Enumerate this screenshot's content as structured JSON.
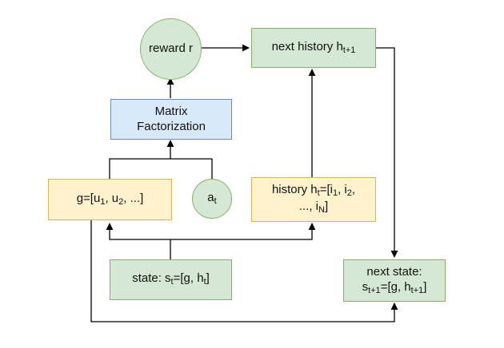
{
  "nodes": {
    "reward": {
      "text": "reward r"
    },
    "next_history": {
      "main": "next history h",
      "sub": "t+1"
    },
    "matrix": {
      "line1": "Matrix",
      "line2": "Factorization"
    },
    "g_users": {
      "prefix": "g=[u",
      "sub1": "1",
      "mid": ", u",
      "sub2": "2",
      "suffix": ", ...]"
    },
    "action": {
      "main": "a",
      "sub": "t"
    },
    "history": {
      "line1_prefix": "history h",
      "line1_sub_t": "t",
      "line1_mid": "=[i",
      "line1_sub1": "1",
      "line1_mid2": ", i",
      "line1_sub2": "2",
      "line1_suffix": ",",
      "line2_prefix": "..., i",
      "line2_sub": "N",
      "line2_suffix": "]"
    },
    "state": {
      "prefix": "state: s",
      "sub": "t",
      "suffix": "=[g, h",
      "sub2": "t",
      "end": "]"
    },
    "next_state": {
      "line1": "next state:",
      "line2_prefix": "s",
      "line2_sub": "t+1",
      "line2_mid": "=[g, h",
      "line2_sub2": "t+1",
      "line2_end": "]"
    }
  },
  "colors": {
    "green_fill": "#d5e8d4",
    "green_stroke": "#82b366",
    "yellow_fill": "#fff2cc",
    "yellow_stroke": "#d6b656",
    "blue_fill": "#dae8fc",
    "blue_stroke": "#6c8ebf",
    "edge": "#000000"
  }
}
